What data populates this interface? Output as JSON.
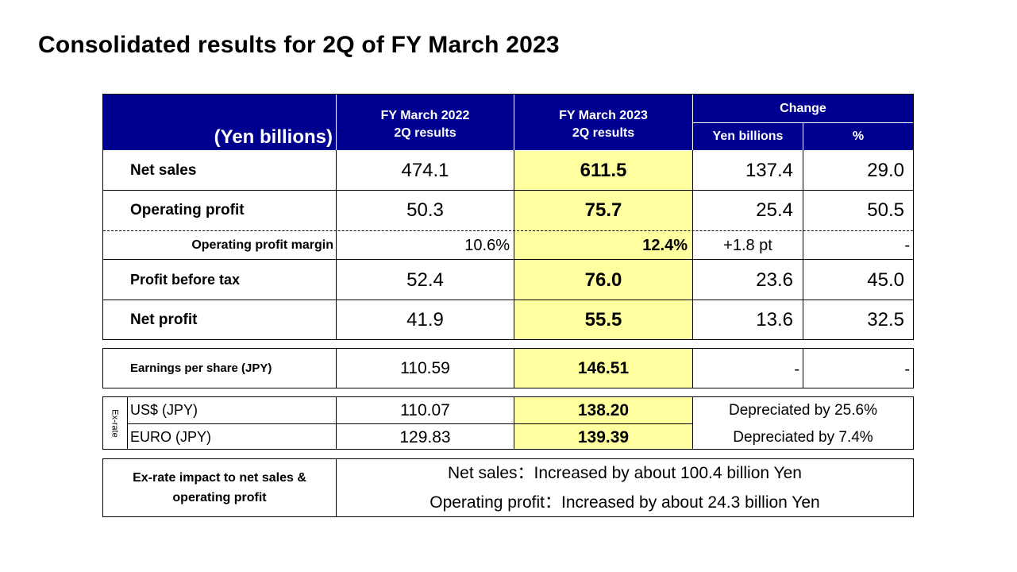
{
  "title": "Consolidated results for 2Q of FY March 2023",
  "colors": {
    "header_bg": "#000090",
    "highlight_bg": "#ffff9f"
  },
  "header": {
    "unit_label": "(Yen billions)",
    "col_prev": {
      "line1": "FY March 2022",
      "line2": "2Q results"
    },
    "col_curr": {
      "line1": "FY March 2023",
      "line2": "2Q results"
    },
    "change": "Change",
    "change_yen": "Yen billions",
    "change_pct": "%"
  },
  "rows": {
    "net_sales": {
      "label": "Net sales",
      "prev": "474.1",
      "curr": "611.5",
      "chg": "137.4",
      "pct": "29.0"
    },
    "op_profit": {
      "label": "Operating profit",
      "prev": "50.3",
      "curr": "75.7",
      "chg": "25.4",
      "pct": "50.5"
    },
    "op_margin": {
      "label": "Operating profit margin",
      "prev": "10.6%",
      "curr": "12.4%",
      "chg": "+1.8 pt",
      "pct": "-"
    },
    "pbt": {
      "label": "Profit before tax",
      "prev": "52.4",
      "curr": "76.0",
      "chg": "23.6",
      "pct": "45.0"
    },
    "net_profit": {
      "label": "Net profit",
      "prev": "41.9",
      "curr": "55.5",
      "chg": "13.6",
      "pct": "32.5"
    }
  },
  "eps": {
    "label": "Earnings per share (JPY)",
    "prev": "110.59",
    "curr": "146.51",
    "chg": "-",
    "pct": "-"
  },
  "exrate": {
    "side_label": "Ex-rate",
    "usd": {
      "label": "US$ (JPY)",
      "prev": "110.07",
      "curr": "138.20",
      "note": "Depreciated by 25.6%"
    },
    "euro": {
      "label": "EURO (JPY)",
      "prev": "129.83",
      "curr": "139.39",
      "note": "Depreciated by 7.4%"
    }
  },
  "impact": {
    "label_line1": "Ex-rate impact to net sales &",
    "label_line2": "operating profit",
    "line1": "Net sales：Increased by about 100.4 billion Yen",
    "line2": "Operating profit：Increased by about 24.3 billion Yen"
  }
}
